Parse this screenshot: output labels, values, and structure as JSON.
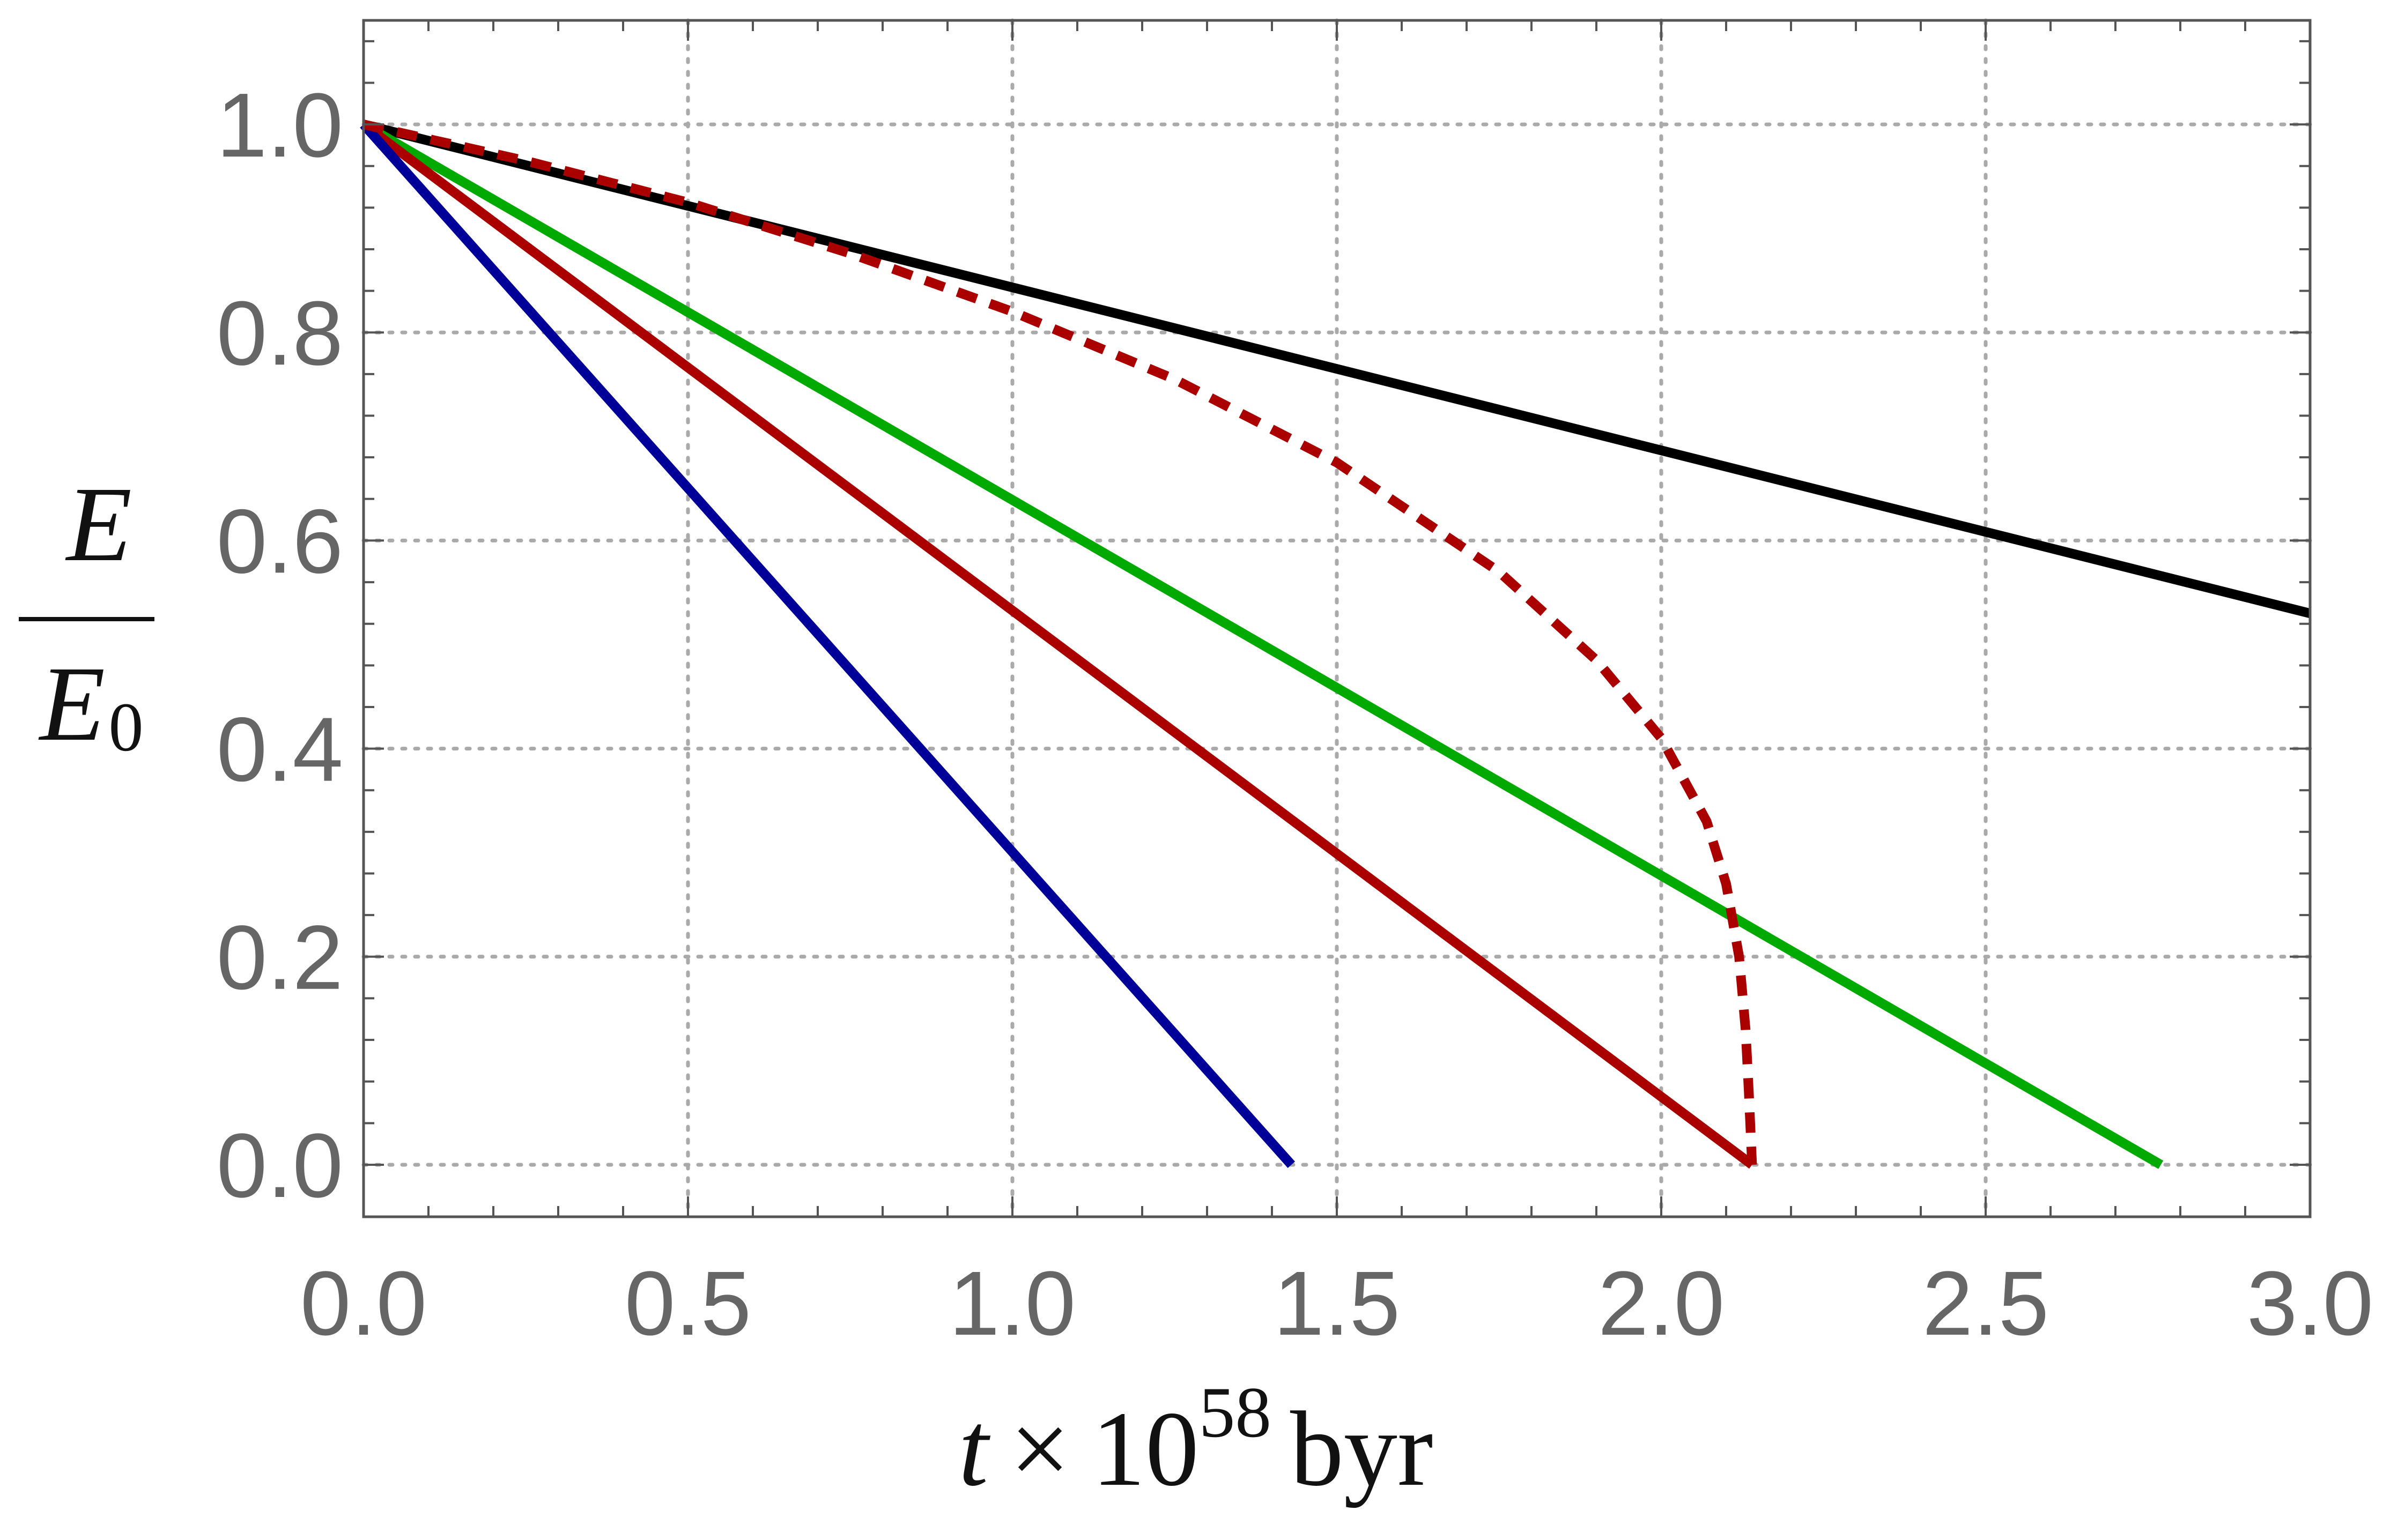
{
  "chart_data": {
    "type": "line",
    "title": "",
    "xlabel": {
      "var": "t",
      "times": "×",
      "base": "10",
      "exponent": "58",
      "unit": "byr"
    },
    "ylabel": {
      "numerator": "E",
      "denominator": "E",
      "denominator_sub": "0"
    },
    "xlim": [
      0,
      3.0
    ],
    "ylim": [
      -0.05,
      1.1
    ],
    "x_ticks": [
      0.0,
      0.5,
      1.0,
      1.5,
      2.0,
      2.5,
      3.0
    ],
    "x_tick_labels": [
      "0.0",
      "0.5",
      "1.0",
      "1.5",
      "2.0",
      "2.5",
      "3.0"
    ],
    "y_ticks": [
      0.0,
      0.2,
      0.4,
      0.6,
      0.8,
      1.0
    ],
    "y_tick_labels": [
      "0.0",
      "0.2",
      "0.4",
      "0.6",
      "0.8",
      "1.0"
    ],
    "grid": true,
    "legend": "none",
    "series": [
      {
        "color": "#000000",
        "dashed": false,
        "x": [
          0,
          3.0
        ],
        "y": [
          1.0,
          0.53
        ]
      },
      {
        "color": "#00aa00",
        "dashed": false,
        "x": [
          0,
          2.77
        ],
        "y": [
          1.0,
          0.0
        ]
      },
      {
        "color": "#aa0000",
        "dashed": false,
        "x": [
          0,
          2.14
        ],
        "y": [
          1.0,
          0.0
        ]
      },
      {
        "color": "#000099",
        "dashed": false,
        "x": [
          0,
          1.43
        ],
        "y": [
          1.0,
          0.0
        ]
      },
      {
        "color": "#aa0000",
        "dashed": true,
        "x": [
          0,
          0.25,
          0.5,
          0.75,
          1.0,
          1.25,
          1.5,
          1.75,
          1.9,
          2.0,
          2.07,
          2.1,
          2.12,
          2.13,
          2.135,
          2.14
        ],
        "y": [
          1.0,
          0.965,
          0.925,
          0.876,
          0.82,
          0.755,
          0.675,
          0.57,
          0.485,
          0.41,
          0.33,
          0.27,
          0.2,
          0.13,
          0.07,
          0.0
        ]
      }
    ]
  }
}
